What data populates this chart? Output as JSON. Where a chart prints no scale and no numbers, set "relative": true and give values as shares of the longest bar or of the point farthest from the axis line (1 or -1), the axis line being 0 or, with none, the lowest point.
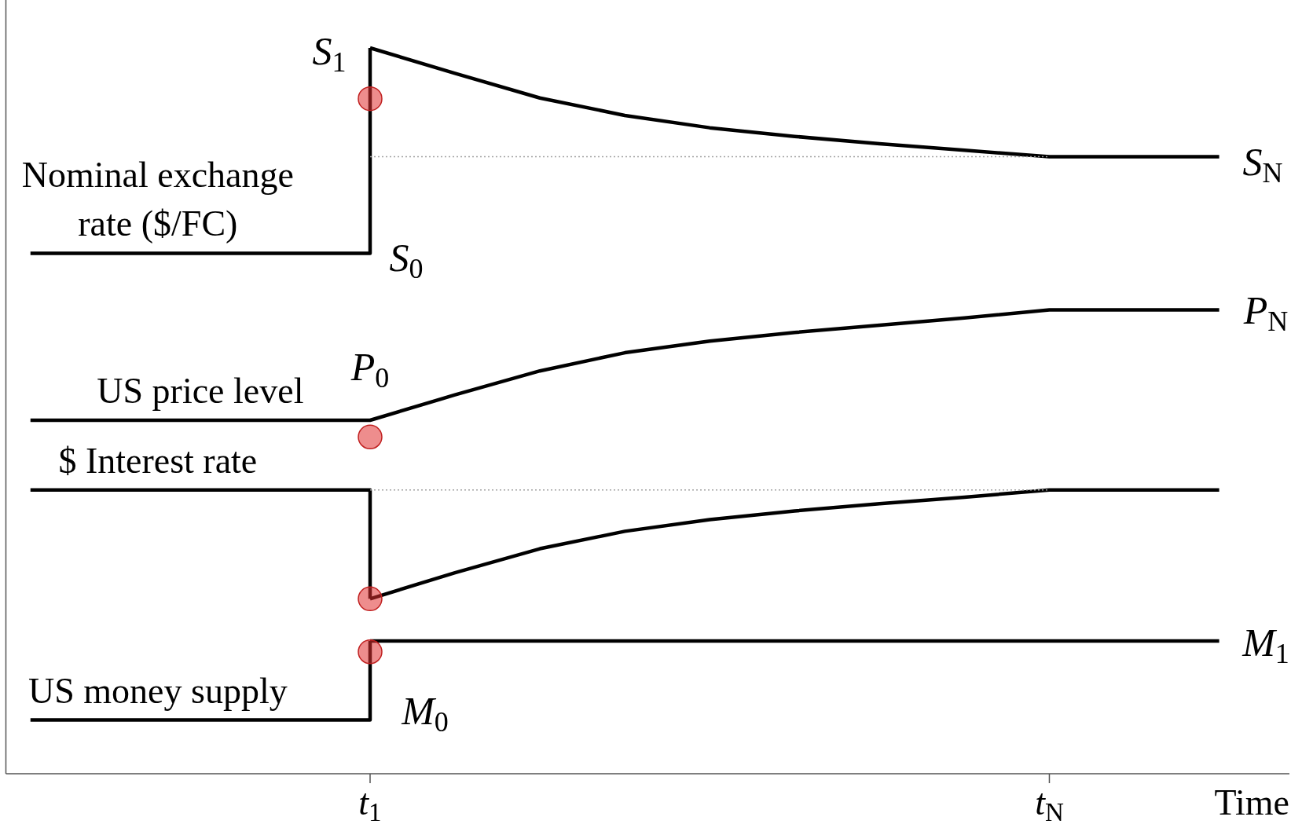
{
  "chart_data": {
    "type": "line",
    "relative": true,
    "legend": false,
    "xlabel": "Time",
    "categories": [
      null,
      null,
      null,
      null,
      "t$_{1}$",
      null,
      null,
      null,
      null,
      null,
      null,
      null,
      "t$_{N}$",
      null,
      null
    ],
    "series": [
      {
        "name": "Nominal exchange rate ($/FC)",
        "type": "step",
        "color": "#000000",
        "values": [
          0.717,
          0.717,
          0.717,
          0.717,
          1.0,
          null,
          null,
          null,
          null,
          null,
          null,
          null,
          null,
          null,
          null
        ]
      },
      {
        "color": "#000000",
        "values": [
          null,
          null,
          null,
          null,
          1.0,
          0.965,
          0.931,
          0.907,
          0.89,
          0.878,
          0.868,
          0.859,
          0.85,
          0.85,
          0.85
        ]
      },
      {
        "name": "US price level",
        "color": "#000000",
        "values": [
          0.487,
          0.487,
          0.487,
          0.487,
          0.487,
          0.522,
          0.555,
          0.58,
          0.596,
          0.608,
          0.618,
          0.628,
          0.639,
          0.639,
          0.639
        ]
      },
      {
        "name": "$ Interest rate",
        "type": "step",
        "color": "#000000",
        "values": [
          0.391,
          0.391,
          0.391,
          0.391,
          0.241,
          null,
          null,
          null,
          null,
          null,
          null,
          null,
          null,
          null,
          null
        ]
      },
      {
        "color": "#000000",
        "values": [
          null,
          null,
          null,
          null,
          0.241,
          0.277,
          0.31,
          0.334,
          0.35,
          0.362,
          0.372,
          0.381,
          0.391,
          0.391,
          0.391
        ]
      },
      {
        "name": "US money supply",
        "type": "step",
        "color": "#000000",
        "values": [
          0.074,
          0.074,
          0.074,
          0.074,
          0.183,
          null,
          null,
          null,
          null,
          null,
          null,
          null,
          null,
          null,
          null
        ]
      },
      {
        "color": "#000000",
        "values": [
          null,
          null,
          null,
          null,
          0.183,
          0.183,
          0.183,
          0.183,
          0.183,
          0.183,
          0.183,
          0.183,
          0.183,
          0.183,
          0.183
        ]
      },
      {
        "line_style": "dotted",
        "color": "#a0a0a0",
        "values": [
          null,
          null,
          null,
          null,
          0.85,
          0.85,
          0.85,
          0.85,
          0.85,
          0.85,
          0.85,
          0.85,
          0.85,
          null,
          null
        ]
      },
      {
        "line_style": "dotted",
        "color": "#a0a0a0",
        "values": [
          null,
          null,
          null,
          null,
          0.391,
          0.391,
          0.391,
          0.391,
          0.391,
          0.391,
          0.391,
          0.391,
          0.391,
          null,
          null
        ]
      },
      {
        "type": "scatter",
        "marker": "circle",
        "color": "#e03030",
        "x": [
          "t$_{1}$",
          "t$_{1}$",
          "t$_{1}$",
          "t$_{1}$"
        ],
        "values": [
          0.93,
          0.464,
          0.241,
          0.168
        ]
      }
    ],
    "annotations": [
      "S$_{1}$",
      "S$_{0}$",
      "S$_{N}$",
      "P$_{0}$",
      "P$_{N}$",
      "M$_{0}$",
      "M$_{1}$"
    ]
  }
}
